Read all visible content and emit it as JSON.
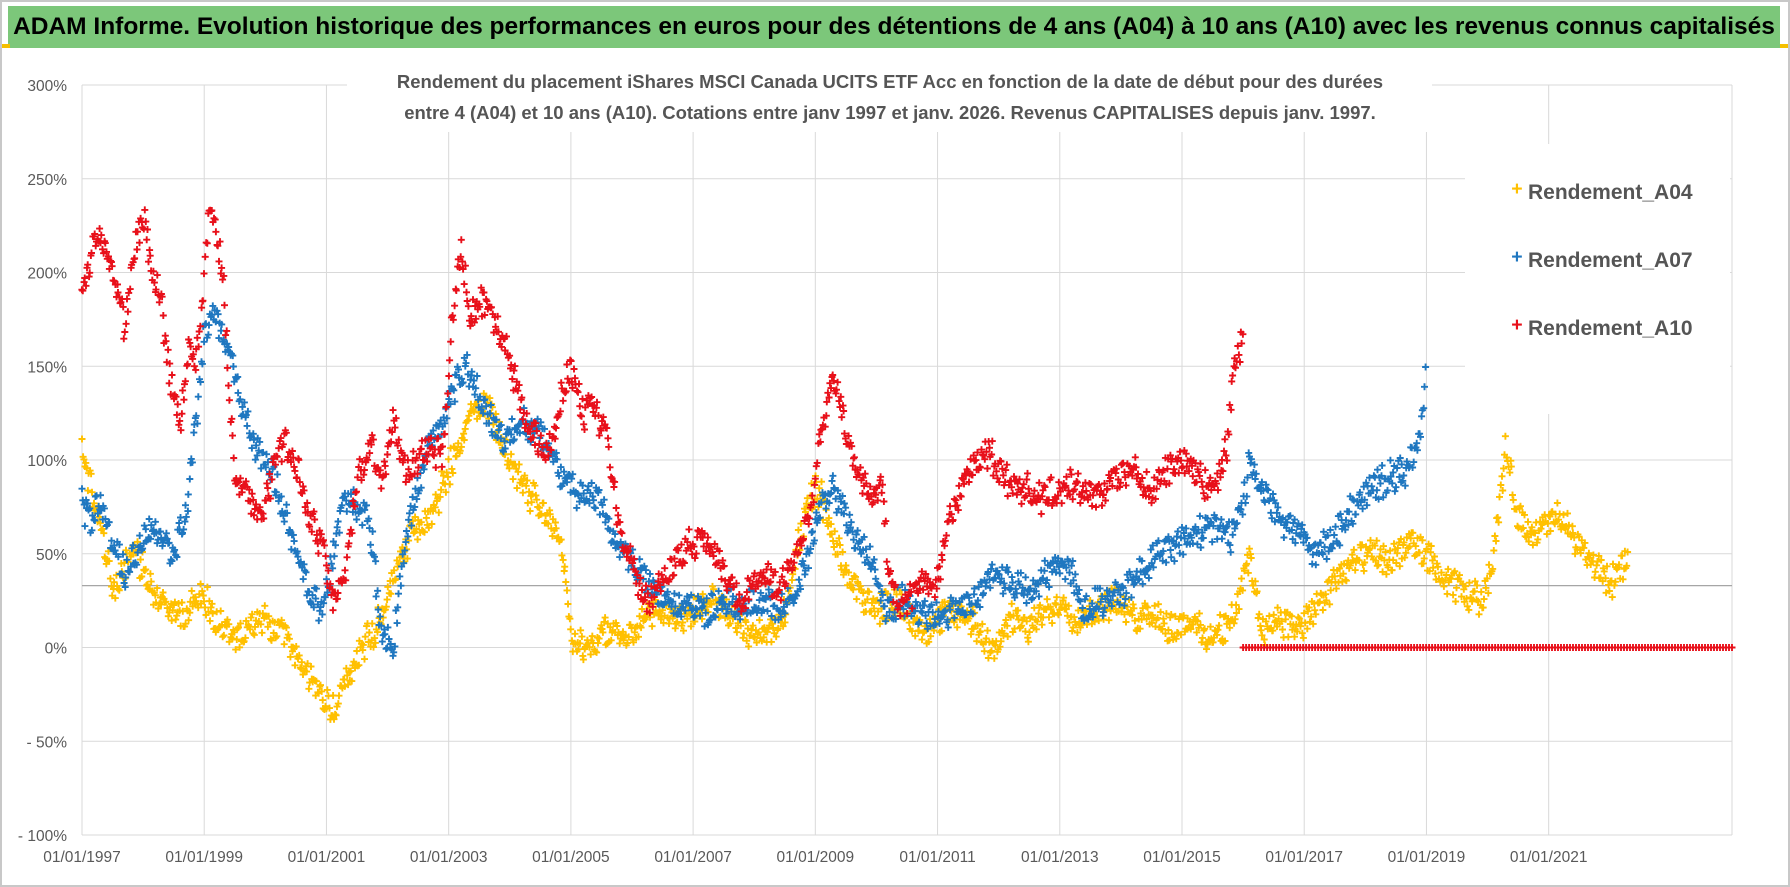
{
  "banner": {
    "title": "ADAM Informe. Evolution historique des performances en euros pour des détentions de 4 ans (A04) à 10 ans (A10) avec les revenus connus capitalisés"
  },
  "colors": {
    "banner_bg": "#7cc77a",
    "a04": "#ffc000",
    "a07": "#1f77c0",
    "a10": "#e8101a",
    "grid": "#d9d9d9"
  },
  "chart_data": {
    "type": "scatter",
    "title_lines": [
      "Rendement du placement iShares MSCI Canada UCITS ETF Acc en fonction de la date de début pour des durées",
      "entre 4 (A04) et 10 ans (A10). Cotations entre janv 1997 et janv. 2026. Revenus CAPITALISES depuis janv. 1997."
    ],
    "xlabel": "",
    "ylabel": "",
    "x_range": [
      1997.0,
      2024.0
    ],
    "ylim": [
      -100,
      300
    ],
    "y_ticks": [
      300,
      250,
      200,
      150,
      100,
      50,
      0,
      -50,
      -100
    ],
    "y_tick_labels": [
      "300%",
      "250%",
      "200%",
      "150%",
      "100%",
      "50%",
      "0%",
      "- 50%",
      "- 100%"
    ],
    "x_tick_years": [
      1997,
      1999,
      2001,
      2003,
      2005,
      2007,
      2009,
      2011,
      2013,
      2015,
      2017,
      2019,
      2021
    ],
    "x_tick_labels": [
      "01/01/1997",
      "01/01/1999",
      "01/01/2001",
      "01/01/2003",
      "01/01/2005",
      "01/01/2007",
      "01/01/2009",
      "01/01/2011",
      "01/01/2013",
      "01/01/2015",
      "01/01/2017",
      "01/01/2019",
      "01/01/2021"
    ],
    "reference_line_y": 33,
    "marker": "+",
    "legend_position": "top-right",
    "series": [
      {
        "name": "Rendement_A04",
        "color": "#ffc000",
        "x": [
          1997.0,
          1997.15,
          1997.3,
          1997.5,
          1997.7,
          1997.9,
          1998.1,
          1998.3,
          1998.5,
          1998.7,
          1998.85,
          1999.0,
          1999.3,
          1999.6,
          1999.9,
          2000.2,
          2000.5,
          2000.7,
          2000.9,
          2001.1,
          2001.3,
          2001.5,
          2001.7,
          2001.9,
          2002.1,
          2002.4,
          2002.7,
          2003.0,
          2003.2,
          2003.4,
          2003.6,
          2003.8,
          2004.0,
          2004.2,
          2004.4,
          2004.6,
          2004.75,
          2004.85,
          2005.0,
          2005.3,
          2005.6,
          2005.9,
          2006.2,
          2006.5,
          2006.8,
          2007.1,
          2007.4,
          2007.7,
          2008.0,
          2008.3,
          2008.5,
          2008.7,
          2008.9,
          2009.0,
          2009.1,
          2009.3,
          2009.5,
          2009.7,
          2010.0,
          2010.3,
          2010.6,
          2010.9,
          2011.2,
          2011.5,
          2011.8,
          2012.0,
          2012.2,
          2012.5,
          2012.8,
          2013.0,
          2013.3,
          2013.6,
          2013.9,
          2014.2,
          2014.5,
          2014.8,
          2015.1,
          2015.4,
          2015.7,
          2015.9,
          2016.0,
          2016.1,
          2016.3,
          2016.6,
          2016.9,
          2017.2,
          2017.5,
          2017.8,
          2018.1,
          2018.4,
          2018.7,
          2019.0,
          2019.3,
          2019.6,
          2019.9,
          2020.1,
          2020.3,
          2020.5,
          2020.8,
          2021.1,
          2021.4,
          2021.7,
          2022.0,
          2022.3
        ],
        "values": [
          105,
          85,
          65,
          30,
          42,
          50,
          35,
          25,
          20,
          15,
          30,
          28,
          10,
          5,
          15,
          10,
          -5,
          -15,
          -25,
          -35,
          -20,
          -5,
          5,
          15,
          40,
          60,
          70,
          95,
          110,
          125,
          130,
          115,
          100,
          85,
          80,
          70,
          65,
          55,
          5,
          0,
          10,
          5,
          15,
          20,
          15,
          20,
          25,
          15,
          5,
          10,
          20,
          50,
          75,
          85,
          80,
          55,
          40,
          30,
          20,
          25,
          15,
          10,
          20,
          15,
          5,
          0,
          15,
          10,
          20,
          25,
          15,
          20,
          25,
          15,
          20,
          10,
          15,
          5,
          10,
          20,
          35,
          50,
          10,
          15,
          10,
          20,
          35,
          45,
          50,
          45,
          55,
          50,
          35,
          30,
          25,
          50,
          105,
          70,
          60,
          70,
          60,
          45,
          35,
          45
        ]
      },
      {
        "name": "Rendement_A07",
        "color": "#1f77c0",
        "x": [
          1997.0,
          1997.15,
          1997.3,
          1997.5,
          1997.7,
          1997.9,
          1998.1,
          1998.3,
          1998.5,
          1998.7,
          1998.9,
          1999.0,
          1999.2,
          1999.4,
          1999.6,
          1999.8,
          2000.0,
          2000.2,
          2000.4,
          2000.6,
          2000.8,
          2000.95,
          2001.1,
          2001.3,
          2001.5,
          2001.7,
          2001.9,
          2002.1,
          2002.3,
          2002.5,
          2002.7,
          2002.9,
          2003.1,
          2003.3,
          2003.6,
          2003.9,
          2004.2,
          2004.5,
          2004.8,
          2005.1,
          2005.4,
          2005.7,
          2006.0,
          2006.3,
          2006.6,
          2006.9,
          2007.2,
          2007.5,
          2007.8,
          2008.1,
          2008.4,
          2008.7,
          2008.9,
          2009.0,
          2009.1,
          2009.3,
          2009.5,
          2009.7,
          2009.9,
          2010.1,
          2010.4,
          2010.7,
          2011.0,
          2011.3,
          2011.6,
          2011.9,
          2012.2,
          2012.5,
          2012.8,
          2013.0,
          2013.2,
          2013.4,
          2013.7,
          2014.0,
          2014.3,
          2014.6,
          2014.9,
          2015.2,
          2015.5,
          2015.8,
          2016.0,
          2016.1,
          2016.3,
          2016.6,
          2016.9,
          2017.2,
          2017.5,
          2017.8,
          2018.1,
          2018.4,
          2018.7,
          2018.9,
          2019.0
        ],
        "values": [
          75,
          70,
          80,
          55,
          40,
          50,
          65,
          60,
          50,
          70,
          130,
          170,
          175,
          160,
          130,
          110,
          100,
          85,
          60,
          40,
          25,
          20,
          50,
          80,
          75,
          70,
          10,
          0,
          60,
          85,
          110,
          120,
          140,
          150,
          125,
          110,
          120,
          115,
          95,
          80,
          80,
          60,
          45,
          35,
          25,
          20,
          20,
          25,
          20,
          25,
          20,
          30,
          50,
          65,
          75,
          85,
          70,
          55,
          50,
          20,
          25,
          20,
          15,
          20,
          25,
          40,
          35,
          30,
          40,
          45,
          40,
          20,
          25,
          30,
          40,
          50,
          55,
          60,
          65,
          60,
          75,
          100,
          85,
          70,
          60,
          50,
          60,
          75,
          85,
          90,
          95,
          110,
          150
        ]
      },
      {
        "name": "Rendement_A10",
        "color": "#e8101a",
        "x": [
          1997.0,
          1997.1,
          1997.25,
          1997.4,
          1997.55,
          1997.7,
          1997.85,
          1998.0,
          1998.15,
          1998.3,
          1998.45,
          1998.6,
          1998.75,
          1998.85,
          1998.95,
          1999.1,
          1999.3,
          1999.5,
          1999.7,
          1999.9,
          2000.1,
          2000.3,
          2000.5,
          2000.7,
          2000.85,
          2000.95,
          2001.1,
          2001.3,
          2001.5,
          2001.7,
          2001.9,
          2002.1,
          2002.3,
          2002.5,
          2002.7,
          2002.9,
          2003.05,
          2003.2,
          2003.35,
          2003.5,
          2003.7,
          2003.9,
          2004.1,
          2004.3,
          2004.5,
          2004.7,
          2004.85,
          2005.0,
          2005.2,
          2005.4,
          2005.6,
          2005.8,
          2006.0,
          2006.2,
          2006.4,
          2006.6,
          2006.8,
          2007.0,
          2007.2,
          2007.4,
          2007.6,
          2007.8,
          2008.0,
          2008.2,
          2008.4,
          2008.6,
          2008.8,
          2008.95,
          2009.05,
          2009.15,
          2009.3,
          2009.5,
          2009.7,
          2009.9,
          2010.1,
          2010.2,
          2010.4,
          2010.6,
          2010.8,
          2011.0,
          2011.2,
          2011.5,
          2011.8,
          2012.1,
          2012.4,
          2012.7,
          2013.0,
          2013.3,
          2013.6,
          2013.9,
          2014.2,
          2014.5,
          2014.8,
          2015.1,
          2015.4,
          2015.6,
          2015.75,
          2015.85,
          2015.95,
          2016.0
        ],
        "values": [
          195,
          200,
          220,
          215,
          195,
          170,
          210,
          230,
          200,
          185,
          140,
          120,
          160,
          150,
          175,
          240,
          200,
          90,
          80,
          70,
          90,
          110,
          100,
          70,
          60,
          55,
          25,
          35,
          90,
          110,
          90,
          120,
          95,
          100,
          110,
          100,
          170,
          215,
          175,
          185,
          180,
          165,
          140,
          120,
          110,
          105,
          135,
          150,
          125,
          125,
          110,
          60,
          45,
          25,
          30,
          40,
          50,
          55,
          60,
          50,
          30,
          25,
          35,
          40,
          30,
          45,
          60,
          75,
          110,
          125,
          145,
          115,
          90,
          80,
          85,
          40,
          20,
          30,
          35,
          35,
          70,
          95,
          105,
          90,
          85,
          80,
          85,
          85,
          80,
          90,
          95,
          85,
          95,
          100,
          85,
          90,
          110,
          150,
          160,
          175
        ]
      },
      {
        "name": "Rendement_A10 (zero band)",
        "color": "#e8101a",
        "legend": false,
        "x_range": [
          2016.0,
          2024.0
        ],
        "constant_value": 0
      }
    ]
  },
  "legend": {
    "items": [
      {
        "label": "Rendement_A04",
        "color": "#ffc000"
      },
      {
        "label": "Rendement_A07",
        "color": "#1f77c0"
      },
      {
        "label": "Rendement_A10",
        "color": "#e8101a"
      }
    ]
  }
}
